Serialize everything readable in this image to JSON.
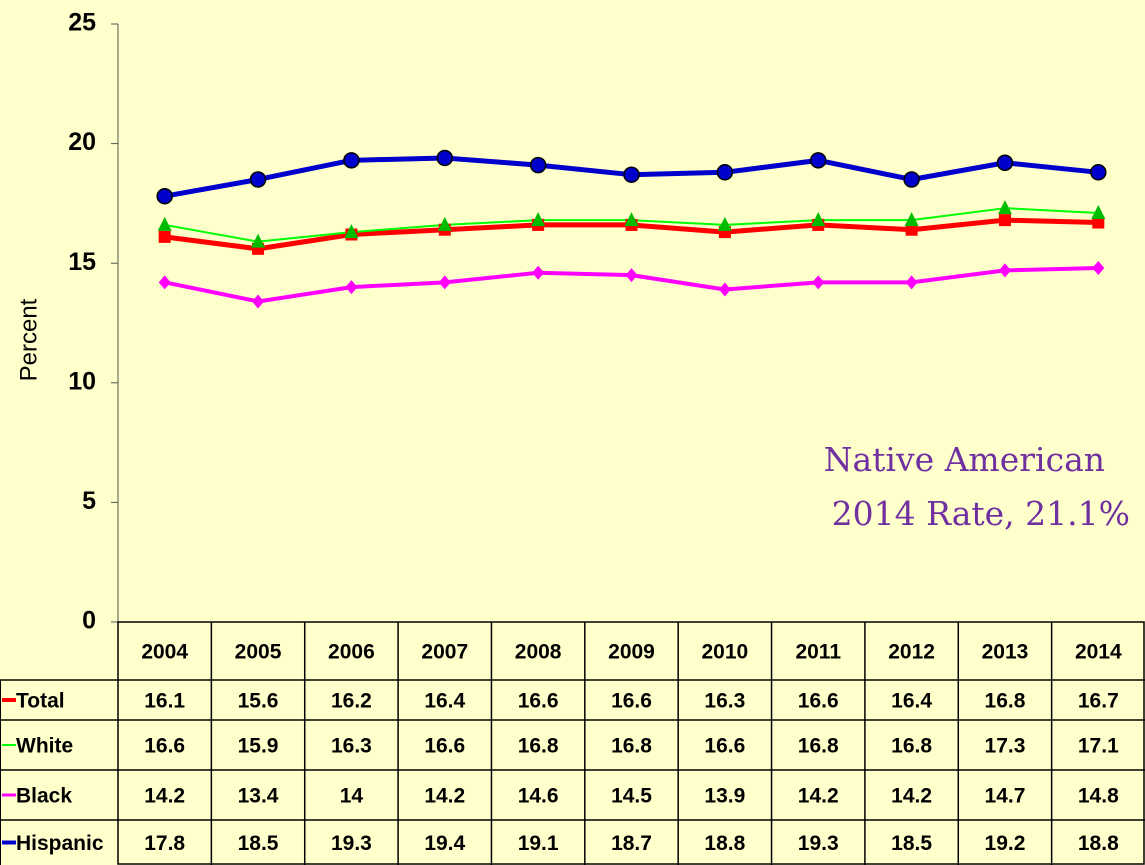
{
  "chart_data": {
    "type": "line",
    "y_label": "Percent",
    "categories": [
      "2004",
      "2005",
      "2006",
      "2007",
      "2008",
      "2009",
      "2010",
      "2011",
      "2012",
      "2013",
      "2014"
    ],
    "series": [
      {
        "name": "Total",
        "color": "#ff0000",
        "marker_color": "#ff0000",
        "marker": "square",
        "line_width": 5,
        "values": [
          16.1,
          15.6,
          16.2,
          16.4,
          16.6,
          16.6,
          16.3,
          16.6,
          16.4,
          16.8,
          16.7
        ]
      },
      {
        "name": "White",
        "color": "#00ff00",
        "marker_color": "#00bb00",
        "marker": "triangle",
        "line_width": 2,
        "values": [
          16.6,
          15.9,
          16.3,
          16.6,
          16.8,
          16.8,
          16.6,
          16.8,
          16.8,
          17.3,
          17.1
        ]
      },
      {
        "name": "Black",
        "color": "#ff00ff",
        "marker_color": "#ff00ff",
        "marker": "diamond",
        "line_width": 4,
        "values": [
          14.2,
          13.4,
          14,
          14.2,
          14.6,
          14.5,
          13.9,
          14.2,
          14.2,
          14.7,
          14.8
        ]
      },
      {
        "name": "Hispanic",
        "color": "#0000cc",
        "marker_color": "#0000cc",
        "marker": "circle",
        "line_width": 5,
        "values": [
          17.8,
          18.5,
          19.3,
          19.4,
          19.1,
          18.7,
          18.8,
          19.3,
          18.5,
          19.2,
          18.8
        ]
      }
    ],
    "ylim": [
      0,
      25
    ],
    "yticks": [
      0,
      5,
      10,
      15,
      20,
      25
    ],
    "annotation": [
      "Native American",
      "2014 Rate,  21.1%"
    ]
  }
}
